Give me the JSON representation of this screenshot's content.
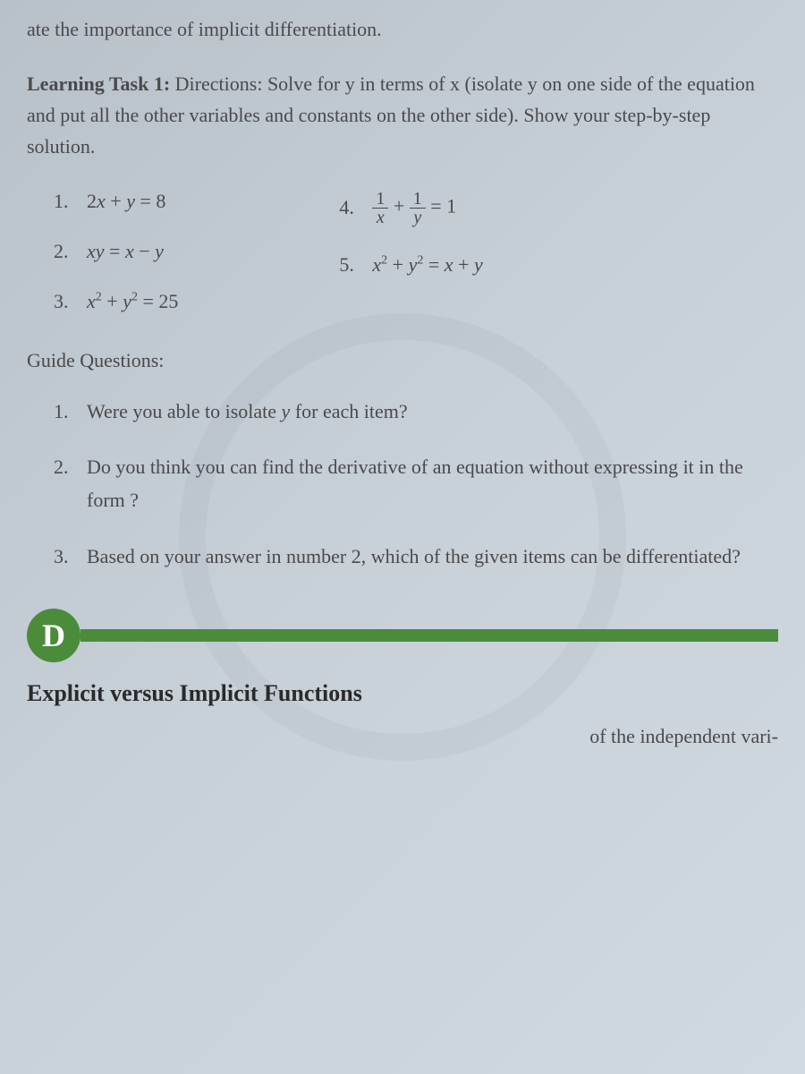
{
  "top_line": "ate the importance of implicit differentiation.",
  "learning_task": {
    "label": "Learning Task 1:",
    "directions_label": "Directions:",
    "text1": "Solve for y in terms of x (isolate y on one side of the equation and put all the other variables and constants on the other side). Show your step-by-step solution."
  },
  "problems": {
    "left": [
      {
        "num": "1.",
        "expr": "2x + y = 8"
      },
      {
        "num": "2.",
        "expr": "xy = x − y"
      },
      {
        "num": "3.",
        "expr": "x² + y² = 25"
      }
    ],
    "right": [
      {
        "num": "4.",
        "frac1_num": "1",
        "frac1_den": "x",
        "plus": "+",
        "frac2_num": "1",
        "frac2_den": "y",
        "equals": "= 1"
      },
      {
        "num": "5.",
        "expr": "x² + y² = x + y"
      }
    ]
  },
  "guide": {
    "title": "Guide Questions:",
    "items": [
      {
        "num": "1.",
        "text_before": "Were you able to isolate ",
        "italic": "y",
        "text_after": " for each item?"
      },
      {
        "num": "2.",
        "text": "Do you think you can find the derivative of an equation without expressing it in the form              ?"
      },
      {
        "num": "3.",
        "text": "Based on your answer in number 2, which of the given items can be differentiated?"
      }
    ]
  },
  "d_letter": "D",
  "section_title": "Explicit versus Implicit Functions",
  "bottom_partial": "of the independent vari-",
  "colors": {
    "green": "#4a8c3a",
    "text": "#4a4a4a",
    "bg_start": "#b8c0c8",
    "bg_end": "#d0d8e0"
  }
}
